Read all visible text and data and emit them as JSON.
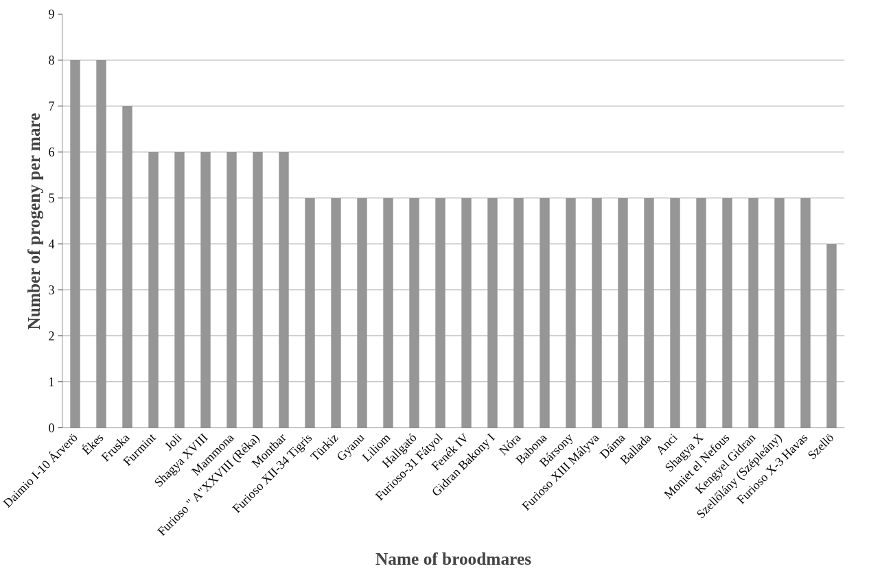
{
  "chart_data": {
    "type": "bar",
    "xlabel": "Name of broodmares",
    "ylabel": "Number of progeny per mare",
    "categories": [
      "Daimio I-10 Árverö",
      "Ékes",
      "Fruska",
      "Furmint",
      "Joli",
      "Shagya XVIII",
      "Mammona",
      "Furioso \" A\"XXVIII (Réka)",
      "Montbar",
      "Furioso XII-34 Tigris",
      "Türkiz",
      "Gyanu",
      "Liliom",
      "Hallgató",
      "Furioso-31 Fátyol",
      "Fenék IV",
      "Gidran Bakony I",
      "Nóra",
      "Babona",
      "Bársony",
      "Furioso XIII Mályva",
      "Dáma",
      "Ballada",
      "Anci",
      "Shagya X",
      "Moniet el Nefous",
      "Kengyel Gidran",
      "Szellőlány (Szépleány)",
      "Furioso X-3 Havas",
      "Szellö"
    ],
    "values": [
      8,
      8,
      7,
      6,
      6,
      6,
      6,
      6,
      6,
      5,
      5,
      5,
      5,
      5,
      5,
      5,
      5,
      5,
      5,
      5,
      5,
      5,
      5,
      5,
      5,
      5,
      5,
      5,
      5,
      4
    ],
    "color": "#969696",
    "ylim": [
      0,
      9
    ],
    "yticks": [
      0,
      1,
      2,
      3,
      4,
      5,
      6,
      7,
      8,
      9
    ],
    "grid": "y"
  }
}
